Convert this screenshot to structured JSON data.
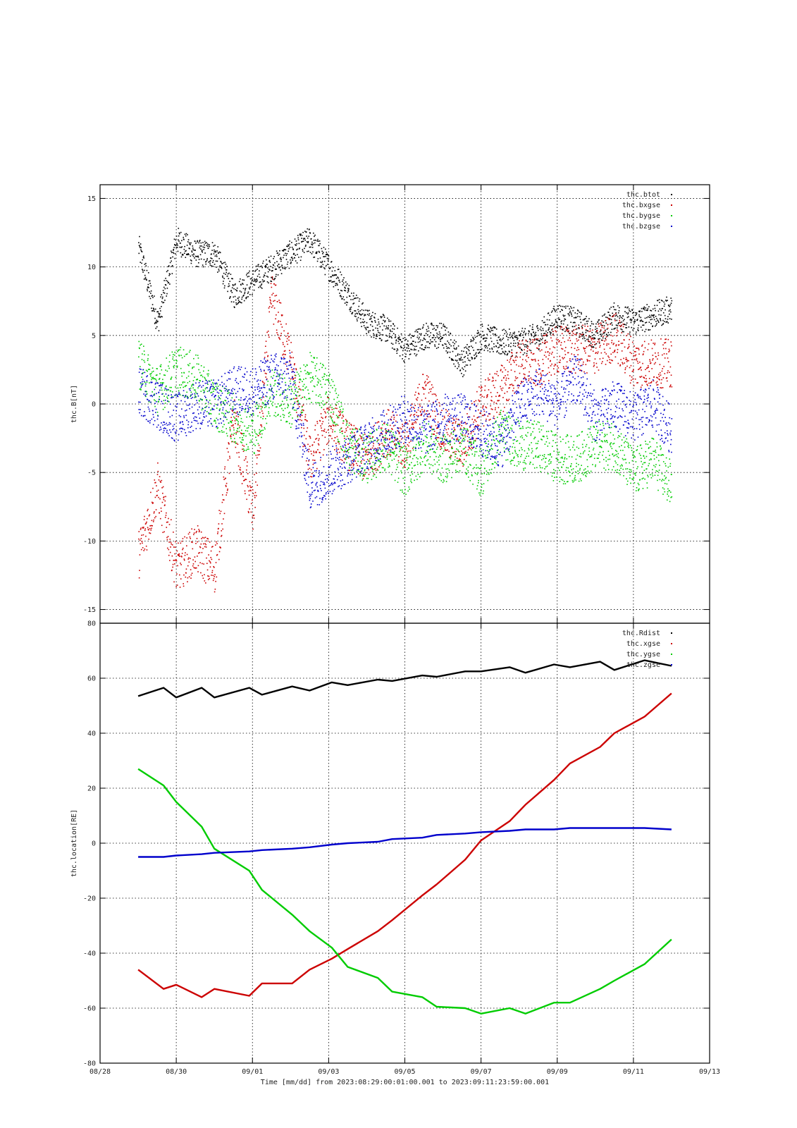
{
  "chart_data": [
    {
      "type": "scatter",
      "title": "",
      "ylabel": "thc.B[nT]",
      "xlim": [
        "08/28",
        "09/13"
      ],
      "ylim": [
        -16,
        16
      ],
      "yticks": [
        15,
        10,
        5,
        0,
        -5,
        -10,
        -15
      ],
      "grid": true,
      "legend_position": "top-right",
      "series": [
        {
          "name": "thc.btot",
          "color": "#000000",
          "x": [
            "08/29 00:00",
            "08/29 12:00",
            "08/30 00:00",
            "08/30 12:00",
            "08/31 00:00",
            "08/31 12:00",
            "09/01 00:00",
            "09/01 12:00",
            "09/02 00:00",
            "09/02 12:00",
            "09/03 00:00",
            "09/03 12:00",
            "09/04 00:00",
            "09/04 12:00",
            "09/05 00:00",
            "09/05 12:00",
            "09/06 00:00",
            "09/06 12:00",
            "09/07 00:00",
            "09/07 12:00",
            "09/08 00:00",
            "09/08 12:00",
            "09/09 00:00",
            "09/09 12:00",
            "09/10 00:00",
            "09/10 12:00",
            "09/11 00:00",
            "09/11 12:00",
            "09/11 23:59"
          ],
          "values": [
            11.5,
            6,
            12,
            11,
            11,
            8,
            9,
            10,
            11,
            12,
            10,
            8,
            6,
            5.5,
            4,
            5,
            5,
            3,
            5,
            4.5,
            4.5,
            5,
            6.5,
            6,
            5,
            6.5,
            6,
            6.5,
            7
          ]
        },
        {
          "name": "thc.bxgse",
          "color": "#cc0000",
          "x": [
            "08/29 00:00",
            "08/29 12:00",
            "08/30 00:00",
            "08/30 12:00",
            "08/31 00:00",
            "08/31 12:00",
            "09/01 00:00",
            "09/01 12:00",
            "09/02 00:00",
            "09/02 12:00",
            "09/03 00:00",
            "09/03 12:00",
            "09/04 00:00",
            "09/04 12:00",
            "09/05 00:00",
            "09/05 12:00",
            "09/06 00:00",
            "09/06 12:00",
            "09/07 00:00",
            "09/07 12:00",
            "09/08 00:00",
            "09/08 12:00",
            "09/09 00:00",
            "09/09 12:00",
            "09/10 00:00",
            "09/10 12:00",
            "09/11 00:00",
            "09/11 12:00",
            "09/11 23:59"
          ],
          "values": [
            -11,
            -6,
            -12,
            -10.5,
            -12,
            -1,
            -8,
            8,
            3,
            -4,
            -1,
            -3,
            -4,
            -2,
            -3,
            1,
            -2,
            -3,
            0,
            1,
            3,
            3,
            4,
            4,
            4,
            5,
            3,
            3,
            3
          ]
        },
        {
          "name": "thc.bygse",
          "color": "#00cc00",
          "x": [
            "08/29 00:00",
            "08/29 12:00",
            "08/30 00:00",
            "08/30 12:00",
            "08/31 00:00",
            "08/31 12:00",
            "09/01 00:00",
            "09/01 12:00",
            "09/02 00:00",
            "09/02 12:00",
            "09/03 00:00",
            "09/03 12:00",
            "09/04 00:00",
            "09/04 12:00",
            "09/05 00:00",
            "09/05 12:00",
            "09/06 00:00",
            "09/06 12:00",
            "09/07 00:00",
            "09/07 12:00",
            "09/08 00:00",
            "09/08 12:00",
            "09/09 00:00",
            "09/09 12:00",
            "09/10 00:00",
            "09/10 12:00",
            "09/11 00:00",
            "09/11 12:00",
            "09/11 23:59"
          ],
          "values": [
            3,
            1,
            2.5,
            2,
            0,
            -1,
            -2,
            1,
            0,
            2,
            1,
            -3,
            -4,
            -3,
            -5,
            -3,
            -4,
            -3,
            -5,
            -2,
            -3,
            -3,
            -4,
            -4,
            -3,
            -3,
            -5,
            -4,
            -6
          ]
        },
        {
          "name": "thc.bzgse",
          "color": "#0000cc",
          "x": [
            "08/29 00:00",
            "08/29 12:00",
            "08/30 00:00",
            "08/30 12:00",
            "08/31 00:00",
            "08/31 12:00",
            "09/01 00:00",
            "09/01 12:00",
            "09/02 00:00",
            "09/02 12:00",
            "09/03 00:00",
            "09/03 12:00",
            "09/04 00:00",
            "09/04 12:00",
            "09/05 00:00",
            "09/05 12:00",
            "09/06 00:00",
            "09/06 12:00",
            "09/07 00:00",
            "09/07 12:00",
            "09/08 00:00",
            "09/08 12:00",
            "09/09 00:00",
            "09/09 12:00",
            "09/10 00:00",
            "09/10 12:00",
            "09/11 00:00",
            "09/11 12:00",
            "09/11 23:59"
          ],
          "values": [
            1,
            0,
            -1,
            0,
            0,
            1,
            1,
            2,
            2,
            -6,
            -5,
            -4,
            -3,
            -2,
            -1,
            -2,
            -1,
            -1,
            -2,
            -3,
            0,
            1,
            0,
            2,
            -1,
            0,
            -1,
            0,
            -2
          ]
        }
      ]
    },
    {
      "type": "line",
      "title": "",
      "ylabel": "thc.location[RE]",
      "xlabel": "Time [mm/dd]  from 2023:08:29:00:01:00.001  to  2023:09:11:23:59:00.001",
      "xlim": [
        "08/28",
        "09/13"
      ],
      "ylim": [
        -80,
        80
      ],
      "yticks": [
        80,
        60,
        40,
        20,
        0,
        -20,
        -40,
        -60,
        -80
      ],
      "xticks": [
        "08/28",
        "08/30",
        "09/01",
        "09/03",
        "09/05",
        "09/07",
        "09/09",
        "09/11",
        "09/13"
      ],
      "grid": true,
      "legend_position": "top-right",
      "series": [
        {
          "name": "thc.Rdist",
          "color": "#000000",
          "x": [
            "08/29 00:00",
            "08/29 16:00",
            "08/30 00:00",
            "08/30 16:00",
            "08/31 00:00",
            "08/31 22:00",
            "09/01 06:00",
            "09/02 01:00",
            "09/02 12:00",
            "09/03 02:00",
            "09/03 12:00",
            "09/04 07:00",
            "09/04 16:00",
            "09/05 11:00",
            "09/05 20:00",
            "09/06 14:00",
            "09/07 00:00",
            "09/07 18:00",
            "09/08 04:00",
            "09/08 22:00",
            "09/09 08:00",
            "09/10 03:00",
            "09/10 12:00",
            "09/11 07:00",
            "09/11 23:59"
          ],
          "values": [
            53.5,
            56.5,
            53,
            56.5,
            53,
            56.5,
            54,
            57,
            55.5,
            58.5,
            57.5,
            59.5,
            59,
            61,
            60.5,
            62.5,
            62.5,
            64,
            62,
            65,
            64,
            66,
            63,
            66.5,
            64.5
          ]
        },
        {
          "name": "thc.xgse",
          "color": "#cc0000",
          "x": [
            "08/29 00:00",
            "08/29 16:00",
            "08/30 00:00",
            "08/30 16:00",
            "08/31 00:00",
            "08/31 22:00",
            "09/01 06:00",
            "09/02 01:00",
            "09/02 12:00",
            "09/03 02:00",
            "09/03 12:00",
            "09/04 07:00",
            "09/04 16:00",
            "09/05 11:00",
            "09/05 20:00",
            "09/06 14:00",
            "09/07 00:00",
            "09/07 18:00",
            "09/08 04:00",
            "09/08 22:00",
            "09/09 08:00",
            "09/10 03:00",
            "09/10 12:00",
            "09/11 07:00",
            "09/11 23:59"
          ],
          "values": [
            -46,
            -53,
            -51.5,
            -56,
            -53,
            -55.5,
            -51,
            -51,
            -46,
            -42,
            -38.5,
            -32,
            -28,
            -19,
            -15,
            -6,
            1,
            8,
            14,
            23,
            29,
            35,
            40,
            46,
            54.5
          ]
        },
        {
          "name": "thc.ygse",
          "color": "#00cc00",
          "x": [
            "08/29 00:00",
            "08/29 16:00",
            "08/30 00:00",
            "08/30 16:00",
            "08/31 00:00",
            "08/31 22:00",
            "09/01 06:00",
            "09/02 01:00",
            "09/02 12:00",
            "09/03 02:00",
            "09/03 12:00",
            "09/04 07:00",
            "09/04 16:00",
            "09/05 11:00",
            "09/05 20:00",
            "09/06 14:00",
            "09/07 00:00",
            "09/07 18:00",
            "09/08 04:00",
            "09/08 22:00",
            "09/09 08:00",
            "09/10 03:00",
            "09/10 12:00",
            "09/11 07:00",
            "09/11 23:59"
          ],
          "values": [
            27,
            21,
            15,
            6,
            -2,
            -10,
            -17,
            -26,
            -32,
            -38,
            -45,
            -49,
            -54,
            -56,
            -59.5,
            -60,
            -62,
            -60,
            -62,
            -58,
            -58,
            -53,
            -50,
            -44,
            -35
          ]
        },
        {
          "name": "thc.zgse",
          "color": "#0000cc",
          "x": [
            "08/29 00:00",
            "08/29 16:00",
            "08/30 00:00",
            "08/30 16:00",
            "08/31 00:00",
            "08/31 22:00",
            "09/01 06:00",
            "09/02 01:00",
            "09/02 12:00",
            "09/03 02:00",
            "09/03 12:00",
            "09/04 07:00",
            "09/04 16:00",
            "09/05 11:00",
            "09/05 20:00",
            "09/06 14:00",
            "09/07 00:00",
            "09/07 18:00",
            "09/08 04:00",
            "09/08 22:00",
            "09/09 08:00",
            "09/10 03:00",
            "09/10 12:00",
            "09/11 07:00",
            "09/11 23:59"
          ],
          "values": [
            -5,
            -5,
            -4.5,
            -4,
            -3.5,
            -3,
            -2.5,
            -2,
            -1.5,
            -0.5,
            0,
            0.5,
            1.5,
            2,
            3,
            3.5,
            4,
            4.5,
            5,
            5,
            5.5,
            5.5,
            5.5,
            5.5,
            5
          ]
        }
      ]
    }
  ]
}
